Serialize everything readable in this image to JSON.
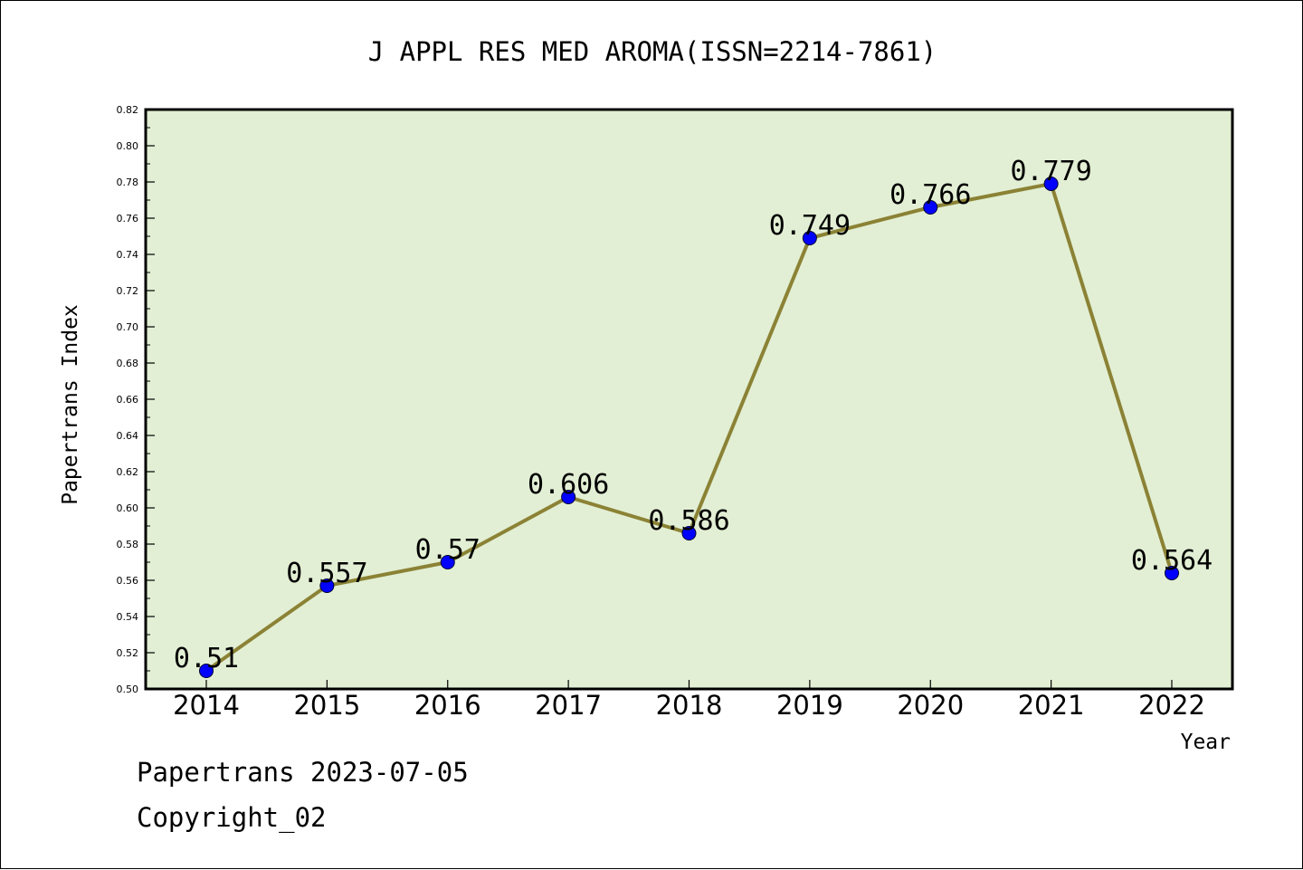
{
  "chart_data": {
    "type": "line",
    "title": "J APPL RES MED AROMA(ISSN=2214-7861)",
    "xlabel": "Year",
    "ylabel": "Papertrans Index",
    "categories": [
      "2014",
      "2015",
      "2016",
      "2017",
      "2018",
      "2019",
      "2020",
      "2021",
      "2022"
    ],
    "series": [
      {
        "values": [
          0.51,
          0.557,
          0.57,
          0.606,
          0.586,
          0.749,
          0.766,
          0.779,
          0.564
        ],
        "labels": [
          "0.51",
          "0.557",
          "0.57",
          "0.606",
          "0.586",
          "0.749",
          "0.766",
          "0.779",
          "0.564"
        ]
      }
    ],
    "ylim": [
      0.5,
      0.82
    ],
    "yticks": [
      "0.50",
      "0.52",
      "0.54",
      "0.56",
      "0.58",
      "0.60",
      "0.62",
      "0.64",
      "0.66",
      "0.68",
      "0.70",
      "0.72",
      "0.74",
      "0.76",
      "0.78",
      "0.80",
      "0.82"
    ],
    "grid": false,
    "colors": {
      "plot_background": "#e2efd4",
      "line": "#8b8235",
      "marker": "#0000ff"
    }
  },
  "footer": {
    "date_line": "Papertrans 2023-07-05",
    "copyright": "Copyright_02"
  }
}
